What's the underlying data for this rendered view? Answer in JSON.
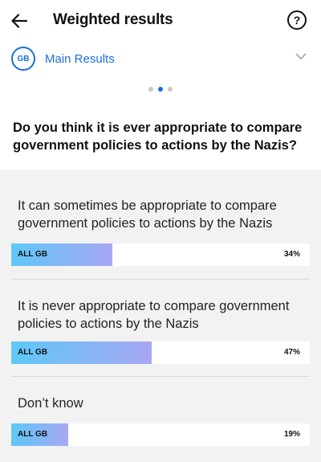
{
  "header": {
    "title": "Weighted results",
    "help_label": "?"
  },
  "selector": {
    "badge": "GB",
    "label": "Main Results"
  },
  "pager": {
    "count": 3,
    "active_index": 1
  },
  "question": "Do you think it is ever appropriate to compare government policies to actions by the Nazis?",
  "options": [
    {
      "text": "It can sometimes be appropriate to compare government policies to actions by the Nazis",
      "group": "ALL GB",
      "percent_label": "34%",
      "value": 34
    },
    {
      "text": "It is never appropriate to compare government policies to actions by the Nazis",
      "group": "ALL GB",
      "percent_label": "47%",
      "value": 47
    },
    {
      "text": "Don’t know",
      "group": "ALL GB",
      "percent_label": "19%",
      "value": 19
    }
  ],
  "colors": {
    "accent": "#1a6fd9",
    "bar_gradient_start": "#5ec8f8",
    "bar_gradient_end": "#a7a7f4",
    "panel_background": "#f2f2f2"
  }
}
